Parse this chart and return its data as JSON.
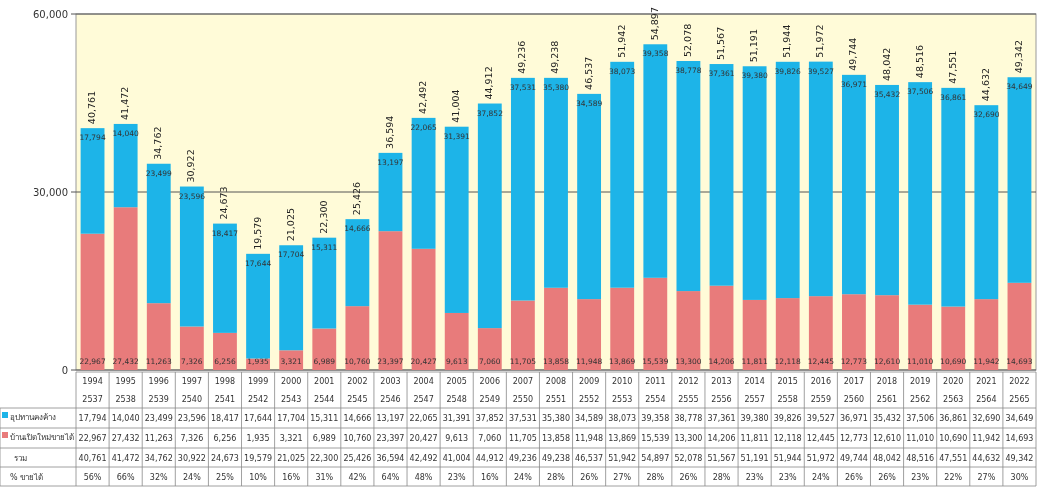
{
  "chart_data": {
    "type": "bar",
    "stacked": true,
    "categories": [
      "1994\n2537",
      "1995\n2538",
      "1996\n2539",
      "1997\n2540",
      "1998\n2541",
      "1999\n2542",
      "2000\n2543",
      "2001\n2544",
      "2002\n2545",
      "2003\n2546",
      "2004\n2547",
      "2005\n2548",
      "2006\n2549",
      "2007\n2550",
      "2008\n2551",
      "2009\n2552",
      "2010\n2553",
      "2011\n2554",
      "2012\n2555",
      "2013\n2556",
      "2014\n2557",
      "2015\n2558",
      "2016\n2559",
      "2017\n2560",
      "2018\n2561",
      "2019\n2562",
      "2020\n2563",
      "2021\n2564",
      "2022\n2565"
    ],
    "series": [
      {
        "name": "บ้านเปิดใหม่ขายได้",
        "color": "#e87b7b",
        "values": [
          22967,
          27432,
          11263,
          7326,
          6256,
          1935,
          3321,
          6989,
          10760,
          23397,
          20427,
          9613,
          7060,
          11705,
          13858,
          11948,
          13869,
          15539,
          13300,
          14206,
          11811,
          12118,
          12445,
          12773,
          12610,
          11010,
          10690,
          11942,
          14693
        ],
        "value_labels": [
          "22,967",
          "27,432",
          "11,263",
          "7,326",
          "6,256",
          "1,935",
          "3,321",
          "6,989",
          "10,760",
          "23,397",
          "20,427",
          "9,613",
          "7,060",
          "11,705",
          "13,858",
          "11,948",
          "13,869",
          "15,539",
          "13,300",
          "14,206",
          "11,811",
          "12,118",
          "12,445",
          "12,773",
          "12,610",
          "11,010",
          "10,690",
          "11,942",
          "14,693"
        ]
      },
      {
        "name": "อุปทานคงค้าง",
        "color": "#1db4e8",
        "values": [
          17794,
          14040,
          23499,
          23596,
          18417,
          17644,
          17704,
          15311,
          14666,
          13197,
          22065,
          31391,
          37852,
          37531,
          35380,
          34589,
          38073,
          39358,
          38778,
          37361,
          39380,
          39826,
          39527,
          36971,
          35432,
          37506,
          36861,
          32690,
          34649
        ],
        "value_labels": [
          "17,794",
          "14,040",
          "23,499",
          "23,596",
          "18,417",
          "17,644",
          "17,704",
          "15,311",
          "14,666",
          "13,197",
          "22,065",
          "31,391",
          "37,852",
          "37,531",
          "35,380",
          "34,589",
          "38,073",
          "39,358",
          "38,778",
          "37,361",
          "39,380",
          "39,826",
          "39,527",
          "36,971",
          "35,432",
          "37,506",
          "36,861",
          "32,690",
          "34,649"
        ]
      }
    ],
    "totals": [
      "40,761",
      "41,472",
      "34,762",
      "30,922",
      "24,673",
      "19,579",
      "21,025",
      "22,300",
      "25,426",
      "36,594",
      "42,492",
      "41,004",
      "44,912",
      "49,236",
      "49,238",
      "46,537",
      "51,942",
      "54,897",
      "52,078",
      "51,567",
      "51,191",
      "51,944",
      "51,972",
      "49,744",
      "48,042",
      "48,516",
      "47,551",
      "44,632",
      "49,342"
    ],
    "annotations": [
      "รวม",
      "% ขายได้",
      "56%",
      "66%",
      "32%",
      "24%",
      "25%",
      "10%",
      "16%",
      "31%",
      "42%",
      "64%",
      "48%",
      "23%",
      "16%",
      "24%",
      "28%",
      "26%",
      "27%",
      "28%",
      "26%",
      "28%",
      "23%",
      "23%",
      "24%",
      "26%",
      "26%",
      "23%",
      "22%",
      "27%",
      "30%"
    ],
    "ylim": [
      0,
      60000
    ],
    "yticks": [
      {
        "value": 0,
        "label": "0"
      },
      {
        "value": 30000,
        "label": "30,000"
      },
      {
        "value": 60000,
        "label": "60,000"
      }
    ],
    "grid": "y",
    "legend": "bottom left"
  }
}
